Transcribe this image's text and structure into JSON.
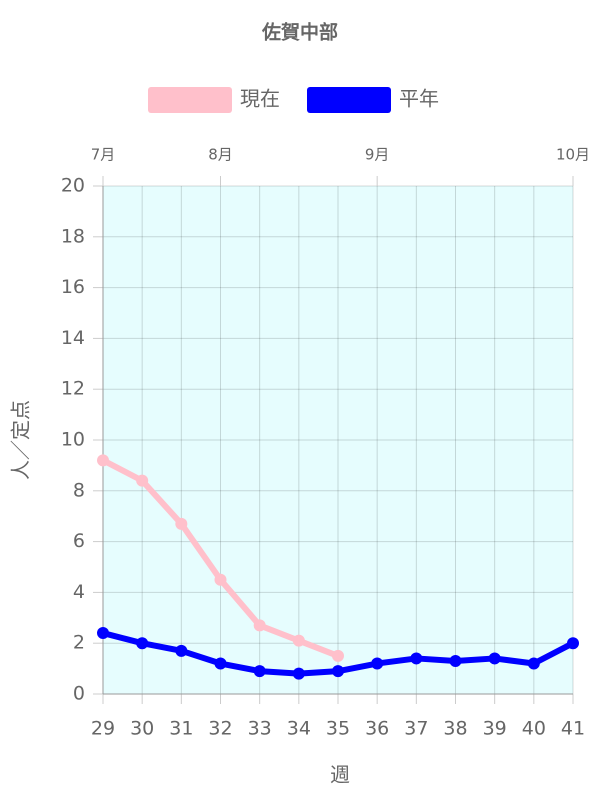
{
  "chart_data": {
    "type": "line",
    "title": "佐賀中部",
    "x": [
      29,
      30,
      31,
      32,
      33,
      34,
      35,
      36,
      37,
      38,
      39,
      40,
      41
    ],
    "xlim": [
      29,
      41
    ],
    "xticks": [
      29,
      30,
      31,
      32,
      33,
      34,
      35,
      36,
      37,
      38,
      39,
      40,
      41
    ],
    "month_ticks": [
      {
        "value": 29,
        "label": "7月"
      },
      {
        "value": 32,
        "label": "8月"
      },
      {
        "value": 36,
        "label": "9月"
      },
      {
        "value": 41,
        "label": "10月"
      }
    ],
    "ylim": [
      0,
      20
    ],
    "yticks": [
      0,
      2,
      4,
      6,
      8,
      10,
      12,
      14,
      16,
      18,
      20
    ],
    "xlabel": "週",
    "ylabel": "人／定点",
    "grid": true,
    "background": "#e6fdfe",
    "series": [
      {
        "name": "現在",
        "color": "#ffc0cb",
        "values": [
          9.2,
          8.4,
          6.7,
          4.5,
          2.7,
          2.1,
          1.5,
          null,
          null,
          null,
          null,
          null,
          null
        ]
      },
      {
        "name": "平年",
        "color": "#0000ff",
        "values": [
          2.4,
          2.0,
          1.7,
          1.2,
          0.9,
          0.8,
          0.9,
          1.2,
          1.4,
          1.3,
          1.4,
          1.2,
          2.0
        ]
      }
    ]
  }
}
